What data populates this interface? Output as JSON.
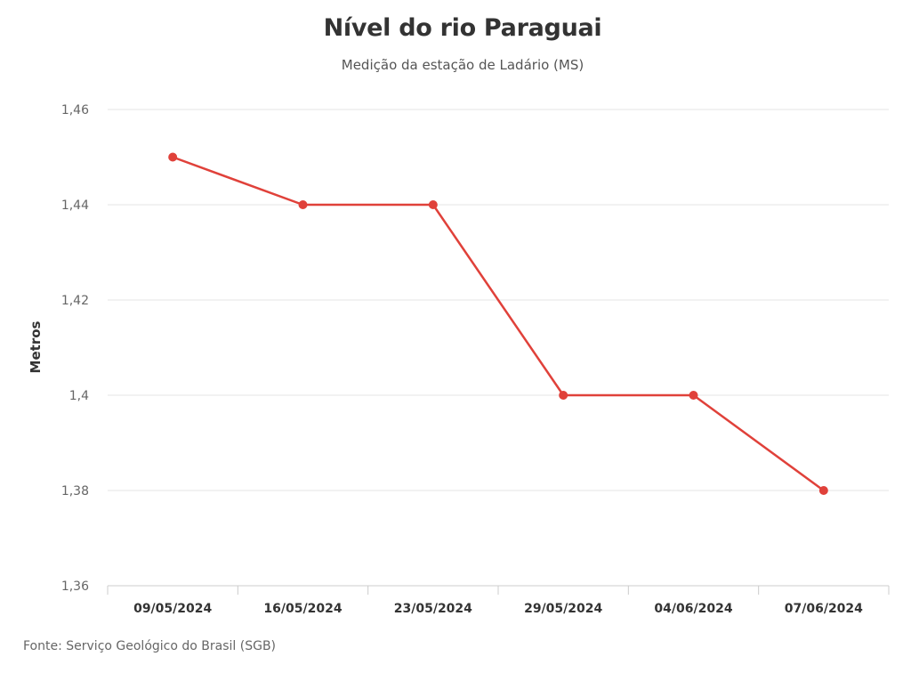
{
  "chart_data": {
    "type": "line",
    "title": "Nível do rio Paraguai",
    "subtitle": "Medição da estação de Ladário (MS)",
    "xlabel": "",
    "ylabel": "Metros",
    "categories": [
      "09/05/2024",
      "16/05/2024",
      "23/05/2024",
      "29/05/2024",
      "04/06/2024",
      "07/06/2024"
    ],
    "series": [
      {
        "values": [
          1.45,
          1.44,
          1.44,
          1.4,
          1.4,
          1.38
        ]
      }
    ],
    "ylim": [
      1.36,
      1.46
    ],
    "yticks": [
      "1,46",
      "1,44",
      "1,42",
      "1,4",
      "1,38",
      "1,36"
    ],
    "yticks_values": [
      1.46,
      1.44,
      1.42,
      1.4,
      1.38,
      1.36
    ],
    "grid": true,
    "legend": "none",
    "colors": {
      "line": "#e0413a",
      "grid": "#e6e6e6",
      "axis": "#cccccc"
    }
  },
  "source": "Fonte: Serviço Geológico do Brasil (SGB)"
}
